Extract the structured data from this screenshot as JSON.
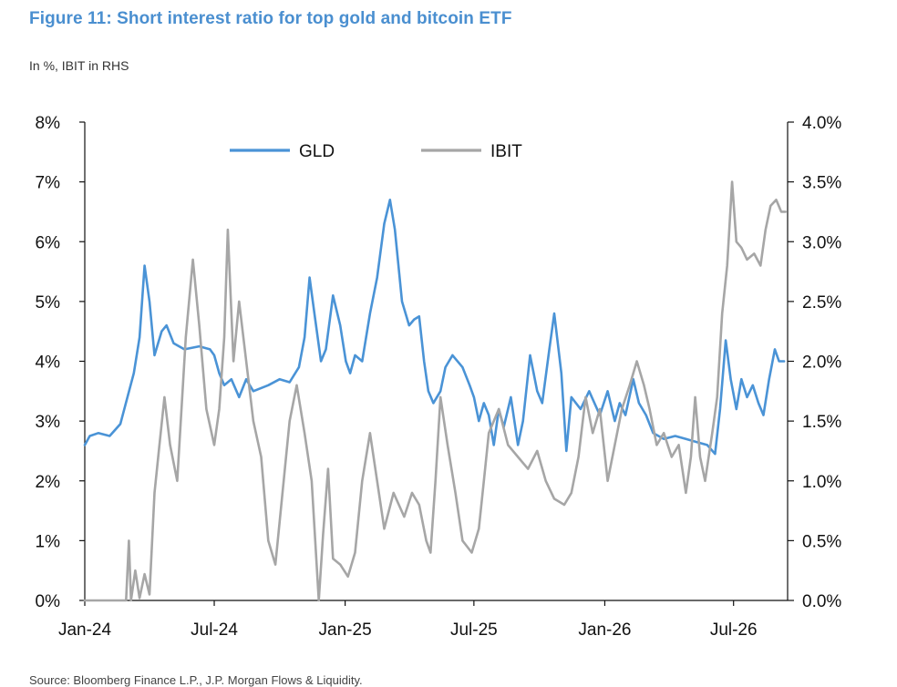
{
  "title": "Figure 11: Short interest ratio for top gold and bitcoin ETF",
  "subtitle": "In %, IBIT in RHS",
  "source": "Source: Bloomberg Finance L.P., J.P. Morgan Flows & Liquidity.",
  "colors": {
    "title": "#4a8fd0",
    "GLD": "#4a93d6",
    "IBIT": "#a6a6a6",
    "axis": "#111111"
  },
  "chart_data": {
    "type": "line",
    "x_tick_labels": [
      "Jan-24",
      "Jul-24",
      "Jan-25",
      "Jul-25",
      "Jan-26",
      "Jul-26"
    ],
    "x_ticks": [
      "2024-01-01",
      "2024-07-01",
      "2025-01-01",
      "2025-07-01",
      "2026-01-01",
      "2026-07-01"
    ],
    "xlim": [
      "2024-01-01",
      "2026-09-15"
    ],
    "left_axis": {
      "ylim": [
        0,
        8
      ],
      "tick_labels": [
        "0%",
        "1%",
        "2%",
        "3%",
        "4%",
        "5%",
        "6%",
        "7%",
        "8%"
      ]
    },
    "right_axis": {
      "ylim": [
        0,
        4
      ],
      "tick_labels": [
        "0.0%",
        "0.5%",
        "1.0%",
        "1.5%",
        "2.0%",
        "2.5%",
        "3.0%",
        "3.5%",
        "4.0%"
      ]
    },
    "legend": {
      "position": "top-center",
      "entries": [
        "GLD",
        "IBIT"
      ]
    },
    "grid": false,
    "series": [
      {
        "name": "GLD",
        "axis": "left",
        "points": [
          [
            "2024-01-01",
            2.6
          ],
          [
            "2024-01-08",
            2.75
          ],
          [
            "2024-01-20",
            2.8
          ],
          [
            "2024-02-05",
            2.75
          ],
          [
            "2024-02-20",
            2.95
          ],
          [
            "2024-03-01",
            3.4
          ],
          [
            "2024-03-10",
            3.8
          ],
          [
            "2024-03-18",
            4.4
          ],
          [
            "2024-03-25",
            5.6
          ],
          [
            "2024-04-01",
            5.0
          ],
          [
            "2024-04-08",
            4.1
          ],
          [
            "2024-04-18",
            4.5
          ],
          [
            "2024-04-25",
            4.6
          ],
          [
            "2024-05-05",
            4.3
          ],
          [
            "2024-05-20",
            4.2
          ],
          [
            "2024-06-10",
            4.25
          ],
          [
            "2024-06-25",
            4.2
          ],
          [
            "2024-07-01",
            4.1
          ],
          [
            "2024-07-08",
            3.8
          ],
          [
            "2024-07-15",
            3.6
          ],
          [
            "2024-07-25",
            3.7
          ],
          [
            "2024-08-05",
            3.4
          ],
          [
            "2024-08-15",
            3.7
          ],
          [
            "2024-08-25",
            3.5
          ],
          [
            "2024-09-15",
            3.6
          ],
          [
            "2024-10-01",
            3.7
          ],
          [
            "2024-10-15",
            3.65
          ],
          [
            "2024-10-28",
            3.9
          ],
          [
            "2024-11-05",
            4.4
          ],
          [
            "2024-11-12",
            5.4
          ],
          [
            "2024-11-20",
            4.7
          ],
          [
            "2024-11-28",
            4.0
          ],
          [
            "2024-12-05",
            4.2
          ],
          [
            "2024-12-15",
            5.1
          ],
          [
            "2024-12-25",
            4.6
          ],
          [
            "2025-01-02",
            4.0
          ],
          [
            "2025-01-08",
            3.8
          ],
          [
            "2025-01-15",
            4.1
          ],
          [
            "2025-01-25",
            4.0
          ],
          [
            "2025-02-05",
            4.8
          ],
          [
            "2025-02-15",
            5.4
          ],
          [
            "2025-02-25",
            6.3
          ],
          [
            "2025-03-05",
            6.7
          ],
          [
            "2025-03-12",
            6.2
          ],
          [
            "2025-03-22",
            5.0
          ],
          [
            "2025-04-01",
            4.6
          ],
          [
            "2025-04-08",
            4.7
          ],
          [
            "2025-04-15",
            4.75
          ],
          [
            "2025-04-22",
            4.0
          ],
          [
            "2025-04-28",
            3.5
          ],
          [
            "2025-05-05",
            3.3
          ],
          [
            "2025-05-15",
            3.5
          ],
          [
            "2025-05-22",
            3.9
          ],
          [
            "2025-06-01",
            4.1
          ],
          [
            "2025-06-15",
            3.9
          ],
          [
            "2025-06-25",
            3.6
          ],
          [
            "2025-07-01",
            3.4
          ],
          [
            "2025-07-08",
            3.0
          ],
          [
            "2025-07-15",
            3.3
          ],
          [
            "2025-07-22",
            3.1
          ],
          [
            "2025-07-29",
            2.6
          ],
          [
            "2025-08-05",
            3.2
          ],
          [
            "2025-08-12",
            2.9
          ],
          [
            "2025-08-22",
            3.4
          ],
          [
            "2025-09-01",
            2.6
          ],
          [
            "2025-09-08",
            3.0
          ],
          [
            "2025-09-18",
            4.1
          ],
          [
            "2025-09-28",
            3.5
          ],
          [
            "2025-10-05",
            3.3
          ],
          [
            "2025-10-15",
            4.2
          ],
          [
            "2025-10-22",
            4.8
          ],
          [
            "2025-11-01",
            3.8
          ],
          [
            "2025-11-08",
            2.5
          ],
          [
            "2025-11-15",
            3.4
          ],
          [
            "2025-11-28",
            3.2
          ],
          [
            "2025-12-10",
            3.5
          ],
          [
            "2025-12-25",
            3.1
          ],
          [
            "2026-01-05",
            3.5
          ],
          [
            "2026-01-15",
            3.0
          ],
          [
            "2026-01-22",
            3.3
          ],
          [
            "2026-01-30",
            3.1
          ],
          [
            "2026-02-10",
            3.7
          ],
          [
            "2026-02-18",
            3.3
          ],
          [
            "2026-02-28",
            3.1
          ],
          [
            "2026-03-10",
            2.8
          ],
          [
            "2026-03-25",
            2.7
          ],
          [
            "2026-04-10",
            2.75
          ],
          [
            "2026-04-25",
            2.7
          ],
          [
            "2026-05-10",
            2.65
          ],
          [
            "2026-05-25",
            2.6
          ],
          [
            "2026-06-05",
            2.45
          ],
          [
            "2026-06-12",
            3.2
          ],
          [
            "2026-06-20",
            4.35
          ],
          [
            "2026-06-27",
            3.7
          ],
          [
            "2026-07-05",
            3.2
          ],
          [
            "2026-07-12",
            3.7
          ],
          [
            "2026-07-20",
            3.4
          ],
          [
            "2026-07-28",
            3.6
          ],
          [
            "2026-08-05",
            3.3
          ],
          [
            "2026-08-12",
            3.1
          ],
          [
            "2026-08-20",
            3.7
          ],
          [
            "2026-08-28",
            4.2
          ],
          [
            "2026-09-03",
            4.0
          ],
          [
            "2026-09-10",
            4.0
          ]
        ]
      },
      {
        "name": "IBIT",
        "axis": "right",
        "points": [
          [
            "2024-01-01",
            0.0
          ],
          [
            "2024-02-15",
            0.0
          ],
          [
            "2024-02-28",
            0.0
          ],
          [
            "2024-03-03",
            0.5
          ],
          [
            "2024-03-06",
            0.0
          ],
          [
            "2024-03-12",
            0.25
          ],
          [
            "2024-03-18",
            0.02
          ],
          [
            "2024-03-25",
            0.22
          ],
          [
            "2024-04-01",
            0.05
          ],
          [
            "2024-04-08",
            0.9
          ],
          [
            "2024-04-15",
            1.3
          ],
          [
            "2024-04-22",
            1.7
          ],
          [
            "2024-04-30",
            1.3
          ],
          [
            "2024-05-10",
            1.0
          ],
          [
            "2024-05-22",
            2.2
          ],
          [
            "2024-06-01",
            2.85
          ],
          [
            "2024-06-10",
            2.3
          ],
          [
            "2024-06-20",
            1.6
          ],
          [
            "2024-07-01",
            1.3
          ],
          [
            "2024-07-08",
            1.6
          ],
          [
            "2024-07-15",
            2.2
          ],
          [
            "2024-07-20",
            3.1
          ],
          [
            "2024-07-28",
            2.0
          ],
          [
            "2024-08-05",
            2.5
          ],
          [
            "2024-08-15",
            2.0
          ],
          [
            "2024-08-25",
            1.5
          ],
          [
            "2024-09-05",
            1.2
          ],
          [
            "2024-09-15",
            0.5
          ],
          [
            "2024-09-25",
            0.3
          ],
          [
            "2024-10-05",
            0.9
          ],
          [
            "2024-10-15",
            1.5
          ],
          [
            "2024-10-25",
            1.8
          ],
          [
            "2024-11-05",
            1.4
          ],
          [
            "2024-11-15",
            1.0
          ],
          [
            "2024-11-25",
            0.0
          ],
          [
            "2024-12-01",
            0.55
          ],
          [
            "2024-12-08",
            1.1
          ],
          [
            "2024-12-15",
            0.35
          ],
          [
            "2024-12-25",
            0.3
          ],
          [
            "2025-01-05",
            0.2
          ],
          [
            "2025-01-15",
            0.4
          ],
          [
            "2025-01-25",
            1.0
          ],
          [
            "2025-02-05",
            1.4
          ],
          [
            "2025-02-15",
            1.0
          ],
          [
            "2025-02-25",
            0.6
          ],
          [
            "2025-03-10",
            0.9
          ],
          [
            "2025-03-25",
            0.7
          ],
          [
            "2025-04-05",
            0.9
          ],
          [
            "2025-04-15",
            0.8
          ],
          [
            "2025-04-25",
            0.5
          ],
          [
            "2025-05-01",
            0.4
          ],
          [
            "2025-05-08",
            1.0
          ],
          [
            "2025-05-15",
            1.7
          ],
          [
            "2025-05-25",
            1.3
          ],
          [
            "2025-06-05",
            0.9
          ],
          [
            "2025-06-15",
            0.5
          ],
          [
            "2025-06-28",
            0.4
          ],
          [
            "2025-07-08",
            0.6
          ],
          [
            "2025-07-15",
            1.0
          ],
          [
            "2025-07-22",
            1.4
          ],
          [
            "2025-08-05",
            1.6
          ],
          [
            "2025-08-18",
            1.3
          ],
          [
            "2025-09-01",
            1.2
          ],
          [
            "2025-09-15",
            1.1
          ],
          [
            "2025-09-28",
            1.25
          ],
          [
            "2025-10-10",
            1.0
          ],
          [
            "2025-10-22",
            0.85
          ],
          [
            "2025-11-05",
            0.8
          ],
          [
            "2025-11-15",
            0.9
          ],
          [
            "2025-11-25",
            1.2
          ],
          [
            "2025-12-05",
            1.7
          ],
          [
            "2025-12-15",
            1.4
          ],
          [
            "2025-12-25",
            1.6
          ],
          [
            "2026-01-05",
            1.0
          ],
          [
            "2026-01-15",
            1.3
          ],
          [
            "2026-01-25",
            1.6
          ],
          [
            "2026-02-05",
            1.8
          ],
          [
            "2026-02-15",
            2.0
          ],
          [
            "2026-02-25",
            1.8
          ],
          [
            "2026-03-05",
            1.6
          ],
          [
            "2026-03-15",
            1.3
          ],
          [
            "2026-03-25",
            1.4
          ],
          [
            "2026-04-05",
            1.2
          ],
          [
            "2026-04-15",
            1.3
          ],
          [
            "2026-04-25",
            0.9
          ],
          [
            "2026-05-02",
            1.2
          ],
          [
            "2026-05-08",
            1.7
          ],
          [
            "2026-05-15",
            1.2
          ],
          [
            "2026-05-22",
            1.0
          ],
          [
            "2026-06-01",
            1.4
          ],
          [
            "2026-06-08",
            1.7
          ],
          [
            "2026-06-15",
            2.4
          ],
          [
            "2026-06-22",
            2.8
          ],
          [
            "2026-06-29",
            3.5
          ],
          [
            "2026-07-05",
            3.0
          ],
          [
            "2026-07-12",
            2.95
          ],
          [
            "2026-07-20",
            2.85
          ],
          [
            "2026-07-30",
            2.9
          ],
          [
            "2026-08-08",
            2.8
          ],
          [
            "2026-08-15",
            3.1
          ],
          [
            "2026-08-22",
            3.3
          ],
          [
            "2026-08-30",
            3.35
          ],
          [
            "2026-09-06",
            3.25
          ],
          [
            "2026-09-12",
            3.25
          ]
        ]
      }
    ]
  }
}
